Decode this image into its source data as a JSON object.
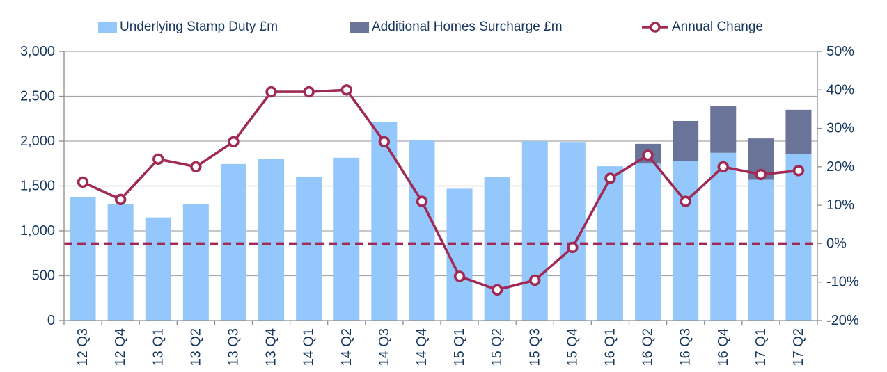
{
  "legend": {
    "items": [
      {
        "label": "Underlying Stamp Duty £m",
        "swatch": "box",
        "color": "#94C7FC"
      },
      {
        "label": "Additional Homes Surcharge £m",
        "swatch": "box",
        "color": "#6A7499"
      },
      {
        "label": "Annual Change",
        "swatch": "line-circle",
        "color": "#A02A55"
      }
    ]
  },
  "chart_data": {
    "type": "bar",
    "subtype": "stacked-bar-with-line-combo",
    "title": "",
    "xlabel": "",
    "ylabel": "",
    "legend_position": "top",
    "grid": true,
    "categories": [
      "12 Q3",
      "12 Q4",
      "13 Q1",
      "13 Q2",
      "13 Q3",
      "13 Q4",
      "14 Q1",
      "14 Q2",
      "14 Q3",
      "14 Q4",
      "15 Q1",
      "15 Q2",
      "15 Q3",
      "15 Q4",
      "16 Q1",
      "16 Q2",
      "16 Q3",
      "16 Q4",
      "17 Q1",
      "17 Q2"
    ],
    "series": [
      {
        "name": "Underlying Stamp Duty £m",
        "chart_type": "bar",
        "axis": "left",
        "color": "#94C7FC",
        "values": [
          1380,
          1295,
          1150,
          1300,
          1745,
          1805,
          1605,
          1815,
          2210,
          2010,
          1470,
          1600,
          2000,
          1990,
          1720,
          1750,
          1780,
          1870,
          1570,
          1860
        ]
      },
      {
        "name": "Additional Homes Surcharge £m",
        "chart_type": "bar-stacked-on-previous",
        "axis": "left",
        "color": "#6A7499",
        "values": [
          0,
          0,
          0,
          0,
          0,
          0,
          0,
          0,
          0,
          0,
          0,
          0,
          0,
          0,
          0,
          220,
          445,
          520,
          460,
          490
        ]
      },
      {
        "name": "Annual Change",
        "chart_type": "line",
        "axis": "right",
        "unit": "%",
        "color": "#A02A55",
        "marker": "open-circle",
        "values": [
          16,
          11.5,
          22,
          20,
          26.5,
          39.5,
          39.5,
          40,
          26.5,
          11,
          -8.5,
          -12,
          -9.5,
          -1,
          17,
          23,
          11,
          20,
          18,
          19
        ]
      }
    ],
    "left_axis": {
      "min": 0,
      "max": 3000,
      "step": 500,
      "tick_labels": [
        "0",
        "500",
        "1,000",
        "1,500",
        "2,000",
        "2,500",
        "3,000"
      ]
    },
    "right_axis": {
      "min": -20,
      "max": 50,
      "step": 10,
      "tick_labels": [
        "-20%",
        "-10%",
        "0%",
        "10%",
        "20%",
        "30%",
        "40%",
        "50%"
      ]
    },
    "reference_line": {
      "axis": "right",
      "value": 0,
      "style": "dashed",
      "color": "#A02A55"
    }
  },
  "colors": {
    "text": "#17375E",
    "gridline": "#A6A6A6",
    "axis_line": "#8C8C8C",
    "background": "#FFFFFF"
  }
}
